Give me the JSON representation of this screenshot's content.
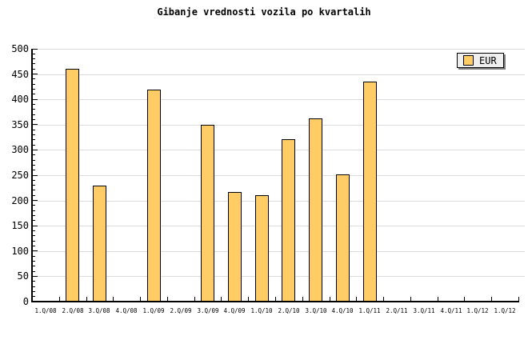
{
  "title": "Gibanje vrednosti vozila po kvartalih",
  "legend": {
    "label": "EUR"
  },
  "colors": {
    "bar_fill": "#FFCC66",
    "bar_border": "#000000",
    "gridline": "#dcdcdc",
    "axis": "#000000",
    "legend_bg": "#efefef",
    "legend_shadow": "#808080",
    "background": "#ffffff",
    "text": "#000000"
  },
  "chart_data": {
    "type": "bar",
    "title": "Gibanje vrednosti vozila po kvartalih",
    "categories": [
      "1.Q/08",
      "2.Q/08",
      "3.Q/08",
      "4.Q/08",
      "1.Q/09",
      "2.Q/09",
      "3.Q/09",
      "4.Q/09",
      "1.Q/10",
      "2.Q/10",
      "3.Q/10",
      "4.Q/10",
      "1.Q/11",
      "2.Q/11",
      "3.Q/11",
      "4.Q/11",
      "1.Q/12",
      "1.Q/12"
    ],
    "series": [
      {
        "name": "EUR",
        "values": [
          null,
          460,
          230,
          null,
          420,
          null,
          350,
          217,
          210,
          321,
          362,
          252,
          435,
          null,
          null,
          null,
          null,
          null
        ]
      }
    ],
    "xlabel": "",
    "ylabel": "",
    "ylim": [
      0,
      500
    ],
    "ytick_interval": 50,
    "yminor_tick_interval": 10,
    "ytick_labels": [
      "0",
      "50",
      "100",
      "150",
      "200",
      "250",
      "300",
      "350",
      "400",
      "450",
      "500"
    ],
    "grid": true,
    "legend_position": "top-right"
  }
}
